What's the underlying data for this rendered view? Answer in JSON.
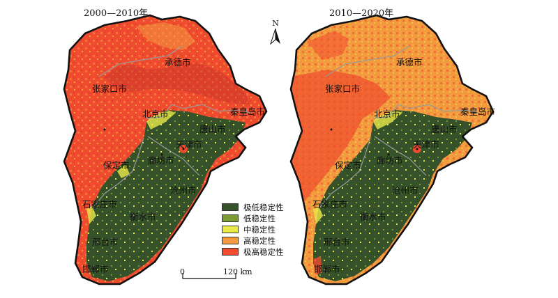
{
  "panels": [
    {
      "title": "2000—2010年",
      "cities": [
        "承德市",
        "张家口市",
        "北京市",
        "秦皇岛市",
        "唐山市",
        "天津市",
        "廊坊市",
        "保定市",
        "沧州市",
        "石家庄市",
        "衡水市",
        "邢台市",
        "邯郸市"
      ],
      "upper_fill_dominant": "#f04a2f"
    },
    {
      "title": "2010—2020年",
      "cities": [
        "承德市",
        "张家口市",
        "北京市",
        "秦皇岛市",
        "唐山市",
        "天津市",
        "廊坊市",
        "保定市",
        "沧州市",
        "石家庄市",
        "衡水市",
        "邢台市",
        "邯郸市"
      ],
      "upper_fill_dominant": "#f39a3e"
    }
  ],
  "legend": [
    {
      "label": "极低稳定性",
      "color": "#35522a"
    },
    {
      "label": "低稳定性",
      "color": "#7c9a35"
    },
    {
      "label": "中稳定性",
      "color": "#eaea4a"
    },
    {
      "label": "高稳定性",
      "color": "#f39a3e"
    },
    {
      "label": "极高稳定性",
      "color": "#f04a2f"
    }
  ],
  "north_arrow": {
    "label": "N",
    "icon": "north-arrow-icon"
  },
  "scale": {
    "start": "0",
    "end": "120 km"
  }
}
